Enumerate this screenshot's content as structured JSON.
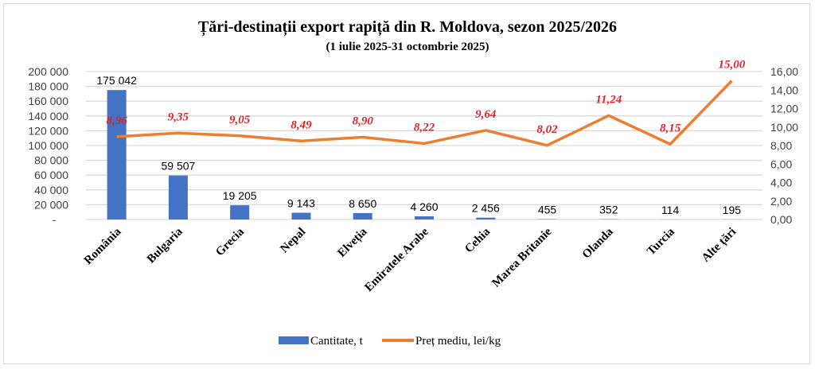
{
  "chart_data": {
    "type": "bar+line",
    "title": "Țări-destinații export rapiță din R. Moldova, sezon 2025/2026",
    "subtitle": "(1 iulie 2025-31  octombrie 2025)",
    "categories": [
      "România",
      "Bulgaria",
      "Grecia",
      "Nepal",
      "Elveția",
      "Emiratele Arabe",
      "Cehia",
      "Marea Britanie",
      "Olanda",
      "Turcia",
      "Alte țări"
    ],
    "series": [
      {
        "name": "Cantitate, t",
        "type": "bar",
        "axis": "left",
        "color": "#4472c4",
        "values": [
          175042,
          59507,
          19205,
          9143,
          8650,
          4260,
          2456,
          455,
          352,
          114,
          195
        ],
        "labels": [
          "175 042",
          "59 507",
          "19 205",
          "9 143",
          "8 650",
          "4 260",
          "2 456",
          "455",
          "352",
          "114",
          "195"
        ]
      },
      {
        "name": "Preț mediu, lei/kg",
        "type": "line",
        "axis": "right",
        "color": "#ed7d31",
        "label_color": "#e0242a",
        "values": [
          8.96,
          9.35,
          9.05,
          8.49,
          8.9,
          8.22,
          9.64,
          8.02,
          11.24,
          8.15,
          15.0
        ],
        "labels": [
          "8,96",
          "9,35",
          "9,05",
          "8,49",
          "8,90",
          "8,22",
          "9,64",
          "8,02",
          "11,24",
          "8,15",
          "15,00"
        ]
      }
    ],
    "y_left": {
      "min": 0,
      "max": 200000,
      "step": 20000,
      "tick_labels": [
        "-",
        "20 000",
        "40 000",
        "60 000",
        "80 000",
        "100 000",
        "120 000",
        "140 000",
        "160 000",
        "180 000",
        "200 000"
      ]
    },
    "y_right": {
      "min": 0,
      "max": 16,
      "step": 2,
      "tick_labels": [
        "0,00",
        "2,00",
        "4,00",
        "6,00",
        "8,00",
        "10,00",
        "12,00",
        "14,00",
        "16,00"
      ]
    },
    "grid": true,
    "legend_position": "bottom"
  }
}
